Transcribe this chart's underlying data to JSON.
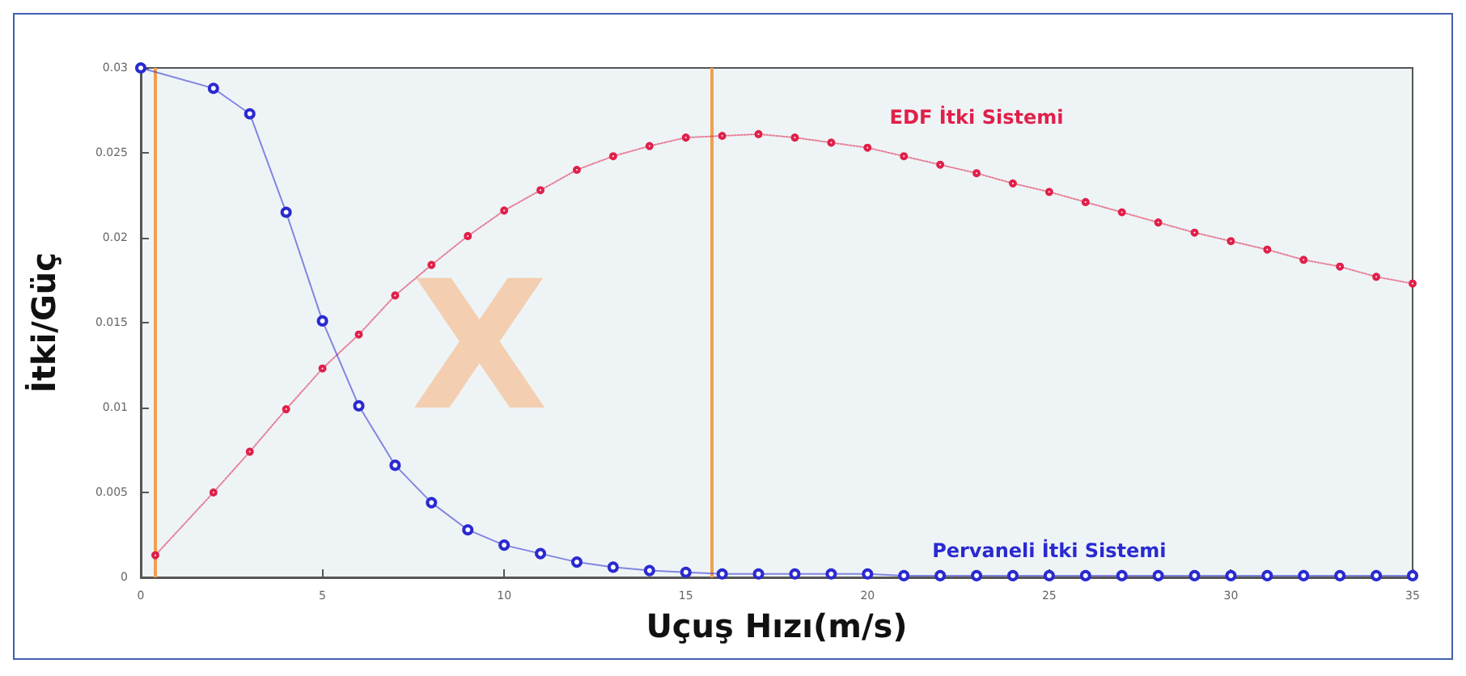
{
  "chart_data": {
    "type": "line",
    "xlabel": "Uçuş Hızı(m/s)",
    "ylabel": "İtki/Güç",
    "annotations": [
      "X"
    ],
    "xlim": [
      0,
      35
    ],
    "xticks": [
      0,
      5,
      10,
      15,
      20,
      25,
      30,
      35
    ],
    "ylim": [
      0,
      0.03
    ],
    "yticks": [
      0,
      0.005,
      0.01,
      0.015,
      0.02,
      0.025,
      0.03
    ],
    "grid": false,
    "legend": false,
    "ref_lines": [
      {
        "axis": "x",
        "value": 0.4,
        "color": "#f0a050"
      },
      {
        "axis": "x",
        "value": 15.7,
        "color": "#f0a050"
      }
    ],
    "series": [
      {
        "name": "EDF İtki Sistemi",
        "color": "#e0204a",
        "marker": "circle",
        "line_style": "dotted",
        "x": [
          0.4,
          2,
          3,
          4,
          5,
          6,
          7,
          8,
          9,
          10,
          11,
          12,
          13,
          14,
          15,
          16,
          17,
          18,
          19,
          20,
          21,
          22,
          23,
          24,
          25,
          26,
          27,
          28,
          29,
          30,
          31,
          32,
          33,
          34,
          35
        ],
        "values": [
          0.0013,
          0.005,
          0.0074,
          0.0099,
          0.0123,
          0.0143,
          0.0166,
          0.0184,
          0.0201,
          0.0216,
          0.0228,
          0.024,
          0.0248,
          0.0254,
          0.0259,
          0.026,
          0.0261,
          0.0259,
          0.0256,
          0.0253,
          0.0248,
          0.0243,
          0.0238,
          0.0232,
          0.0227,
          0.0221,
          0.0215,
          0.0209,
          0.0203,
          0.0198,
          0.0193,
          0.0187,
          0.0183,
          0.0177,
          0.0173
        ]
      },
      {
        "name": "Pervaneli İtki Sistemi",
        "color": "#2a2ad0",
        "marker": "circle",
        "line_style": "solid",
        "x": [
          0,
          2,
          3,
          4,
          5,
          6,
          7,
          8,
          9,
          10,
          11,
          12,
          13,
          14,
          15,
          16,
          17,
          18,
          19,
          20,
          21,
          22,
          23,
          24,
          25,
          26,
          27,
          28,
          29,
          30,
          31,
          32,
          33,
          34,
          35
        ],
        "values": [
          0.03,
          0.0288,
          0.0273,
          0.0215,
          0.0151,
          0.0101,
          0.0066,
          0.0044,
          0.0028,
          0.0019,
          0.0014,
          0.0009,
          0.0006,
          0.0004,
          0.0003,
          0.0002,
          0.0002,
          0.0002,
          0.0002,
          0.0002,
          0.0001,
          0.0001,
          0.0001,
          0.0001,
          0.0001,
          0.0001,
          0.0001,
          0.0001,
          0.0001,
          0.0001,
          0.0001,
          0.0001,
          0.0001,
          0.0001,
          0.0001
        ]
      }
    ]
  }
}
